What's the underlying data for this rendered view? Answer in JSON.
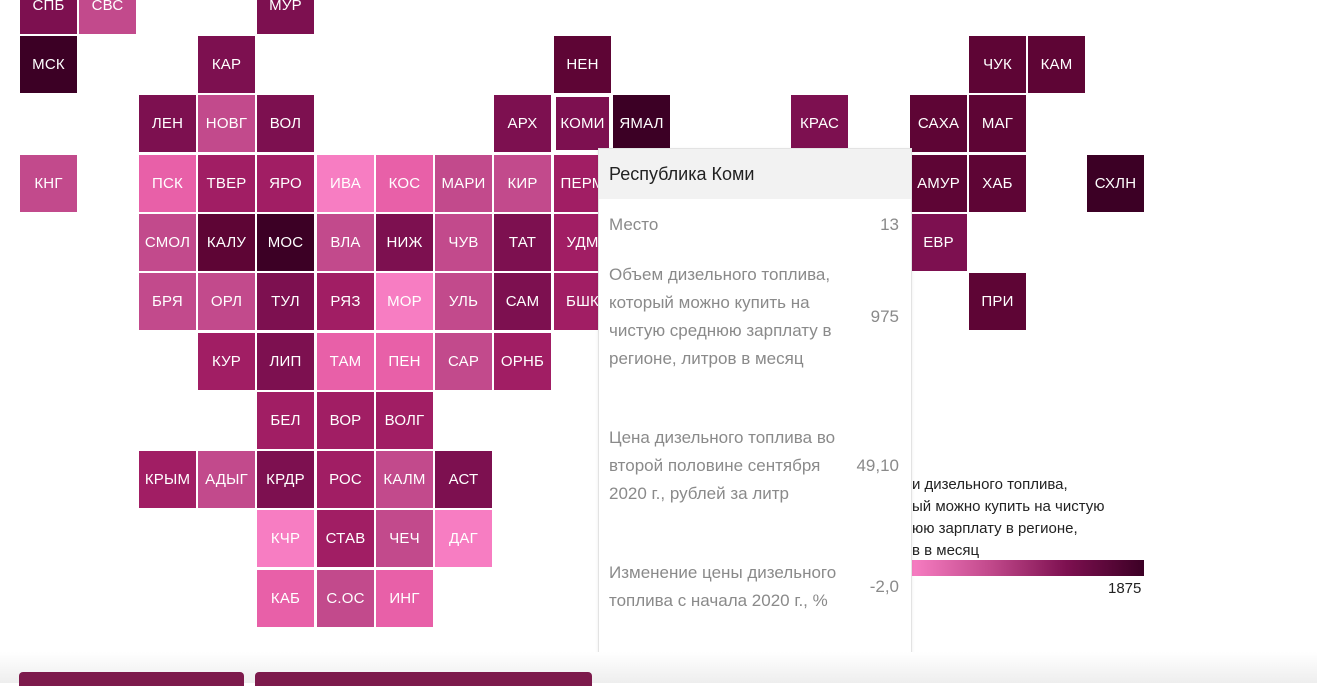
{
  "colors": {
    "c1": "#f77dc2",
    "c2": "#e860a8",
    "c3": "#c24a8c",
    "c4": "#a11e64",
    "c5": "#7d1050",
    "c6": "#5e0535",
    "c7": "#3c0025"
  },
  "regions": [
    {
      "label": "СПБ",
      "row": -1,
      "col": 0,
      "c": "c5"
    },
    {
      "label": "СВС",
      "row": -1,
      "col": 1,
      "c": "c3"
    },
    {
      "label": "МУР",
      "row": -1,
      "col": 4,
      "c": "c5"
    },
    {
      "label": "МСК",
      "row": 0,
      "col": 0,
      "c": "c7"
    },
    {
      "label": "КАР",
      "row": 0,
      "col": 3,
      "c": "c5"
    },
    {
      "label": "НЕН",
      "row": 0,
      "col": 9,
      "c": "c6"
    },
    {
      "label": "ЧУК",
      "row": 0,
      "col": 16,
      "c": "c6"
    },
    {
      "label": "КАМ",
      "row": 0,
      "col": 17,
      "c": "c6"
    },
    {
      "label": "ЛЕН",
      "row": 1,
      "col": 2,
      "c": "c5"
    },
    {
      "label": "НОВГ",
      "row": 1,
      "col": 3,
      "c": "c3"
    },
    {
      "label": "ВОЛ",
      "row": 1,
      "col": 4,
      "c": "c5"
    },
    {
      "label": "АРХ",
      "row": 1,
      "col": 8,
      "c": "c5"
    },
    {
      "label": "КОМИ",
      "row": 1,
      "col": 9,
      "c": "c5",
      "selected": true
    },
    {
      "label": "ЯМАЛ",
      "row": 1,
      "col": 10,
      "c": "c7"
    },
    {
      "label": "КРАС",
      "row": 1,
      "col": 13,
      "c": "c5"
    },
    {
      "label": "САХА",
      "row": 1,
      "col": 15,
      "c": "c6"
    },
    {
      "label": "МАГ",
      "row": 1,
      "col": 16,
      "c": "c6"
    },
    {
      "label": "КНГ",
      "row": 2,
      "col": 0,
      "c": "c3"
    },
    {
      "label": "ПСК",
      "row": 2,
      "col": 2,
      "c": "c2"
    },
    {
      "label": "ТВЕР",
      "row": 2,
      "col": 3,
      "c": "c4"
    },
    {
      "label": "ЯРО",
      "row": 2,
      "col": 4,
      "c": "c4"
    },
    {
      "label": "ИВА",
      "row": 2,
      "col": 5,
      "c": "c1"
    },
    {
      "label": "КОС",
      "row": 2,
      "col": 6,
      "c": "c2"
    },
    {
      "label": "МАРИ",
      "row": 2,
      "col": 7,
      "c": "c3"
    },
    {
      "label": "КИР",
      "row": 2,
      "col": 8,
      "c": "c3"
    },
    {
      "label": "ПЕРМ",
      "row": 2,
      "col": 9,
      "c": "c4"
    },
    {
      "label": "АМУР",
      "row": 2,
      "col": 15,
      "c": "c6"
    },
    {
      "label": "ХАБ",
      "row": 2,
      "col": 16,
      "c": "c6"
    },
    {
      "label": "СХЛН",
      "row": 2,
      "col": 18,
      "c": "c7"
    },
    {
      "label": "СМОЛ",
      "row": 3,
      "col": 2,
      "c": "c3"
    },
    {
      "label": "КАЛУ",
      "row": 3,
      "col": 3,
      "c": "c6"
    },
    {
      "label": "МОС",
      "row": 3,
      "col": 4,
      "c": "c7"
    },
    {
      "label": "ВЛА",
      "row": 3,
      "col": 5,
      "c": "c3"
    },
    {
      "label": "НИЖ",
      "row": 3,
      "col": 6,
      "c": "c5"
    },
    {
      "label": "ЧУВ",
      "row": 3,
      "col": 7,
      "c": "c3"
    },
    {
      "label": "ТАТ",
      "row": 3,
      "col": 8,
      "c": "c5"
    },
    {
      "label": "УДМ",
      "row": 3,
      "col": 9,
      "c": "c4"
    },
    {
      "label": "ЕВР",
      "row": 3,
      "col": 15,
      "c": "c5"
    },
    {
      "label": "БРЯ",
      "row": 4,
      "col": 2,
      "c": "c3"
    },
    {
      "label": "ОРЛ",
      "row": 4,
      "col": 3,
      "c": "c3"
    },
    {
      "label": "ТУЛ",
      "row": 4,
      "col": 4,
      "c": "c5"
    },
    {
      "label": "РЯЗ",
      "row": 4,
      "col": 5,
      "c": "c4"
    },
    {
      "label": "МОР",
      "row": 4,
      "col": 6,
      "c": "c1"
    },
    {
      "label": "УЛЬ",
      "row": 4,
      "col": 7,
      "c": "c3"
    },
    {
      "label": "САМ",
      "row": 4,
      "col": 8,
      "c": "c5"
    },
    {
      "label": "БШК",
      "row": 4,
      "col": 9,
      "c": "c4"
    },
    {
      "label": "ПРИ",
      "row": 4,
      "col": 16,
      "c": "c6"
    },
    {
      "label": "КУР",
      "row": 5,
      "col": 3,
      "c": "c4"
    },
    {
      "label": "ЛИП",
      "row": 5,
      "col": 4,
      "c": "c5"
    },
    {
      "label": "ТАМ",
      "row": 5,
      "col": 5,
      "c": "c2"
    },
    {
      "label": "ПЕН",
      "row": 5,
      "col": 6,
      "c": "c2"
    },
    {
      "label": "САР",
      "row": 5,
      "col": 7,
      "c": "c3"
    },
    {
      "label": "ОРНБ",
      "row": 5,
      "col": 8,
      "c": "c4"
    },
    {
      "label": "БЕЛ",
      "row": 6,
      "col": 4,
      "c": "c4"
    },
    {
      "label": "ВОР",
      "row": 6,
      "col": 5,
      "c": "c4"
    },
    {
      "label": "ВОЛГ",
      "row": 6,
      "col": 6,
      "c": "c4"
    },
    {
      "label": "КРЫМ",
      "row": 7,
      "col": 2,
      "c": "c4"
    },
    {
      "label": "АДЫГ",
      "row": 7,
      "col": 3,
      "c": "c3"
    },
    {
      "label": "КРДР",
      "row": 7,
      "col": 4,
      "c": "c5"
    },
    {
      "label": "РОС",
      "row": 7,
      "col": 5,
      "c": "c4"
    },
    {
      "label": "КАЛМ",
      "row": 7,
      "col": 6,
      "c": "c3"
    },
    {
      "label": "АСТ",
      "row": 7,
      "col": 7,
      "c": "c5"
    },
    {
      "label": "КЧР",
      "row": 8,
      "col": 4,
      "c": "c1"
    },
    {
      "label": "СТАВ",
      "row": 8,
      "col": 5,
      "c": "c4"
    },
    {
      "label": "ЧЕЧ",
      "row": 8,
      "col": 6,
      "c": "c3"
    },
    {
      "label": "ДАГ",
      "row": 8,
      "col": 7,
      "c": "c1"
    },
    {
      "label": "КАБ",
      "row": 9,
      "col": 4,
      "c": "c2"
    },
    {
      "label": "С.ОС",
      "row": 9,
      "col": 5,
      "c": "c3"
    },
    {
      "label": "ИНГ",
      "row": 9,
      "col": 6,
      "c": "c2"
    }
  ],
  "legend": {
    "text": "и дизельного топлива,\nый можно купить на чистую\nюю зарплату в регионе,\nв в месяц",
    "max": "1875"
  },
  "tooltip": {
    "region_name": "Республика Коми",
    "rank_label": "Место",
    "rank_value": "13",
    "volume_label": "Объем дизельного топлива, который можно купить на чистую среднюю зарплату в регионе, литров в месяц",
    "volume_value": "975",
    "price_label": "Цена дизельного топлива во второй половине сентября 2020 г., рублей за литр",
    "price_value": "49,10",
    "change_label": "Изменение цены дизельного топлива с начала 2020 г., %",
    "change_value": "-2,0"
  }
}
